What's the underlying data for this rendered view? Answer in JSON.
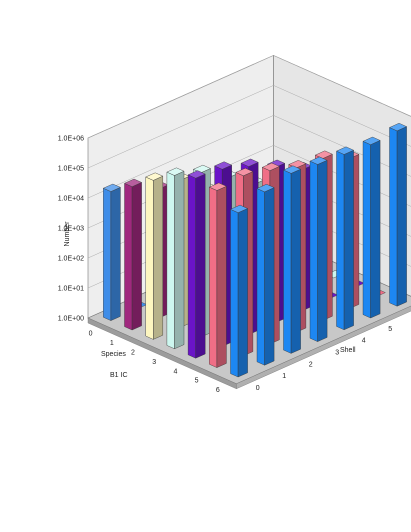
{
  "chart_data": {
    "type": "bar",
    "subtype": "3d-column",
    "title": "",
    "zlabel": "Number",
    "zscale": "log",
    "zlim": [
      1,
      1000000
    ],
    "z_ticks": [
      "1.0E+00",
      "1.0E+01",
      "1.0E+02",
      "1.0E+03",
      "1.0E+04",
      "1.0E+05",
      "1.0E+06"
    ],
    "species_axis_label": [
      "Species",
      "B1 IC"
    ],
    "shell_axis_label": "Shell",
    "species_categories": [
      "0",
      "1",
      "2",
      "3",
      "4",
      "5",
      "6"
    ],
    "shell_categories": [
      "0",
      "1",
      "2",
      "3",
      "4",
      "5",
      "6"
    ],
    "grid": true,
    "legend": "none",
    "floor_color": "#c8c8c8",
    "wall_color": "#eeeeee",
    "species_colors": [
      "#3f8de8",
      "#a0287e",
      "#fdf6c0",
      "#cdf7ef",
      "#6a14c8",
      "#f06e86",
      "#1d87f2"
    ],
    "values": [
      [
        20000,
        0,
        0,
        0,
        0,
        0,
        0
      ],
      [
        60000,
        20000,
        0,
        0,
        0,
        0,
        0
      ],
      [
        200000,
        80000,
        15000,
        0,
        0,
        0,
        0
      ],
      [
        600000,
        300000,
        80000,
        20000,
        0,
        0,
        0
      ],
      [
        1000000,
        800000,
        400000,
        150000,
        50000,
        0,
        0
      ],
      [
        800000,
        1000000,
        600000,
        300000,
        250000,
        100000,
        0
      ],
      [
        300000,
        600000,
        1000000,
        800000,
        700000,
        600000,
        700000
      ]
    ]
  }
}
